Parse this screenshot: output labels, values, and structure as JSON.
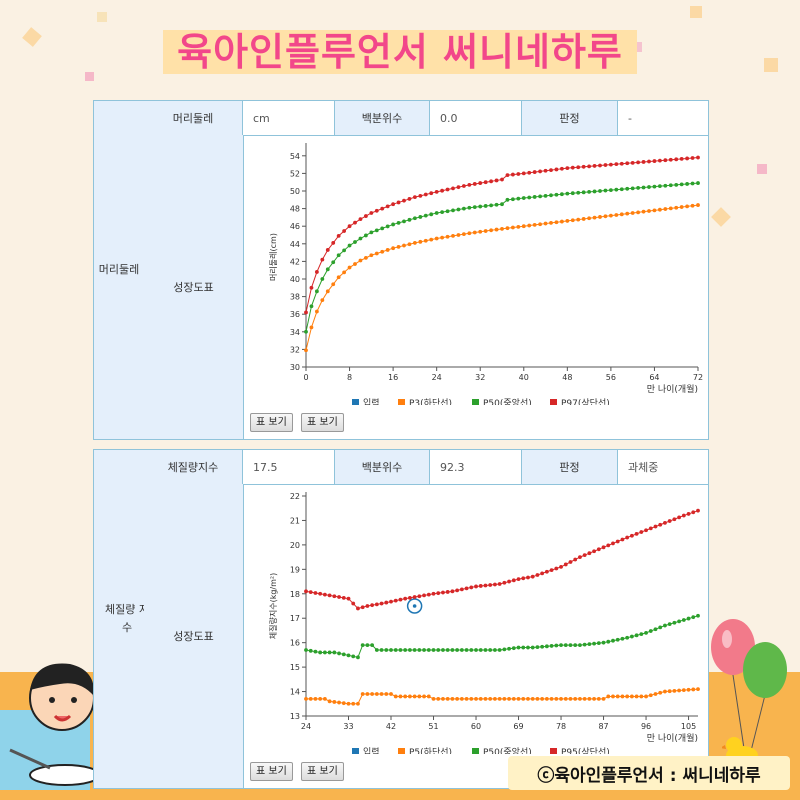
{
  "banner": {
    "title": "육아인플루언서 써니네하루",
    "watermark": "ⓒ육아인플루언서 : 써니네하루"
  },
  "colors": {
    "input": "#1f77b4",
    "p_low": "#ff7f0e",
    "p50": "#2ca02c",
    "p_high": "#d62728",
    "border": "#8fc3da",
    "label_bg": "#e4effb",
    "title": "#f2478a"
  },
  "head_panel": {
    "section_label": "머리둘레",
    "measure_label": "머리둘레",
    "measure_value": "cm",
    "percentile_label": "백분위수",
    "percentile_value": "0.0",
    "judgement_label": "판정",
    "judgement_value": "-",
    "chart_label": "성장도표",
    "buttons": [
      "표 보기",
      "표 보기"
    ]
  },
  "bmi_panel": {
    "section_label": "체질량 지수",
    "measure_label": "체질량지수",
    "measure_value": "17.5",
    "percentile_label": "백분위수",
    "percentile_value": "92.3",
    "judgement_label": "판정",
    "judgement_value": "과체중",
    "chart_label": "성장도표",
    "buttons": [
      "표 보기",
      "표 보기"
    ]
  },
  "chart_data": [
    {
      "type": "line",
      "ylabel": "머리둘레(cm)",
      "xlabel": "만 나이(개월)",
      "xlim": [
        0,
        72
      ],
      "ylim": [
        30,
        55
      ],
      "xticks": [
        0,
        8,
        16,
        24,
        32,
        40,
        48,
        56,
        64,
        72
      ],
      "yticks": [
        30,
        32,
        34,
        36,
        38,
        40,
        42,
        44,
        46,
        48,
        50,
        52,
        54
      ],
      "grid": false,
      "legend_position": "bottom",
      "legend": [
        "입력",
        "P3(하단선)",
        "P50(중앙선)",
        "P97(상단선)"
      ],
      "series": [
        {
          "name": "P3(하단선)",
          "x": [
            0,
            1,
            2,
            3,
            4,
            6,
            8,
            10,
            12,
            16,
            20,
            24,
            30,
            36,
            40,
            48,
            56,
            64,
            72
          ],
          "values": [
            31.9,
            34.5,
            36.3,
            37.6,
            38.6,
            40.2,
            41.3,
            42.1,
            42.7,
            43.5,
            44.1,
            44.6,
            45.2,
            45.7,
            46.0,
            46.6,
            47.2,
            47.8,
            48.4
          ]
        },
        {
          "name": "P50(중앙선)",
          "x": [
            0,
            1,
            2,
            3,
            4,
            6,
            8,
            10,
            12,
            16,
            20,
            24,
            30,
            36,
            37,
            40,
            48,
            56,
            64,
            72
          ],
          "values": [
            34.0,
            36.9,
            38.6,
            40.0,
            41.1,
            42.7,
            43.8,
            44.6,
            45.3,
            46.2,
            46.9,
            47.5,
            48.1,
            48.5,
            49.0,
            49.2,
            49.7,
            50.1,
            50.5,
            50.9
          ]
        },
        {
          "name": "P97(상단선)",
          "x": [
            0,
            1,
            2,
            3,
            4,
            6,
            8,
            10,
            12,
            16,
            20,
            24,
            30,
            36,
            37,
            40,
            48,
            56,
            64,
            72
          ],
          "values": [
            36.2,
            39.0,
            40.8,
            42.2,
            43.3,
            44.9,
            46.0,
            46.8,
            47.5,
            48.5,
            49.3,
            49.9,
            50.7,
            51.3,
            51.8,
            52.0,
            52.6,
            53.0,
            53.4,
            53.8
          ]
        }
      ]
    },
    {
      "type": "line",
      "ylabel": "체질량지수(kg/m²)",
      "xlabel": "만 나이(개월)",
      "xlim": [
        24,
        107
      ],
      "ylim": [
        13,
        22
      ],
      "xticks": [
        24,
        33,
        42,
        51,
        60,
        69,
        78,
        87,
        96,
        105
      ],
      "yticks": [
        13,
        14,
        15,
        16,
        17,
        18,
        19,
        20,
        21,
        22
      ],
      "grid": false,
      "legend_position": "bottom",
      "legend": [
        "입력",
        "P5(하단선)",
        "P50(중앙선)",
        "P95(상단선)"
      ],
      "series": [
        {
          "name": "입력",
          "x": [
            47
          ],
          "values": [
            17.5
          ]
        },
        {
          "name": "P5(하단선)",
          "x": [
            24,
            28,
            29,
            33,
            35,
            36,
            42,
            43,
            50,
            51,
            69,
            70,
            87,
            88,
            96,
            100,
            107
          ],
          "values": [
            13.7,
            13.7,
            13.6,
            13.5,
            13.5,
            13.9,
            13.9,
            13.8,
            13.8,
            13.7,
            13.7,
            13.7,
            13.7,
            13.8,
            13.8,
            14.0,
            14.1
          ]
        },
        {
          "name": "P50(중앙선)",
          "x": [
            24,
            27,
            30,
            35,
            36,
            38,
            39,
            45,
            50,
            55,
            60,
            65,
            69,
            72,
            78,
            82,
            87,
            92,
            96,
            100,
            107
          ],
          "values": [
            15.7,
            15.6,
            15.6,
            15.4,
            15.9,
            15.9,
            15.7,
            15.7,
            15.7,
            15.7,
            15.7,
            15.7,
            15.8,
            15.8,
            15.9,
            15.9,
            16.0,
            16.2,
            16.4,
            16.7,
            17.1
          ]
        },
        {
          "name": "P95(상단선)",
          "x": [
            24,
            27,
            30,
            33,
            34,
            35,
            37,
            40,
            45,
            51,
            55,
            60,
            65,
            69,
            72,
            78,
            82,
            87,
            92,
            96,
            100,
            104,
            107
          ],
          "values": [
            18.1,
            18.0,
            17.9,
            17.8,
            17.6,
            17.4,
            17.5,
            17.6,
            17.8,
            18.0,
            18.1,
            18.3,
            18.4,
            18.6,
            18.7,
            19.1,
            19.5,
            19.9,
            20.3,
            20.6,
            20.9,
            21.2,
            21.4
          ]
        }
      ]
    }
  ]
}
